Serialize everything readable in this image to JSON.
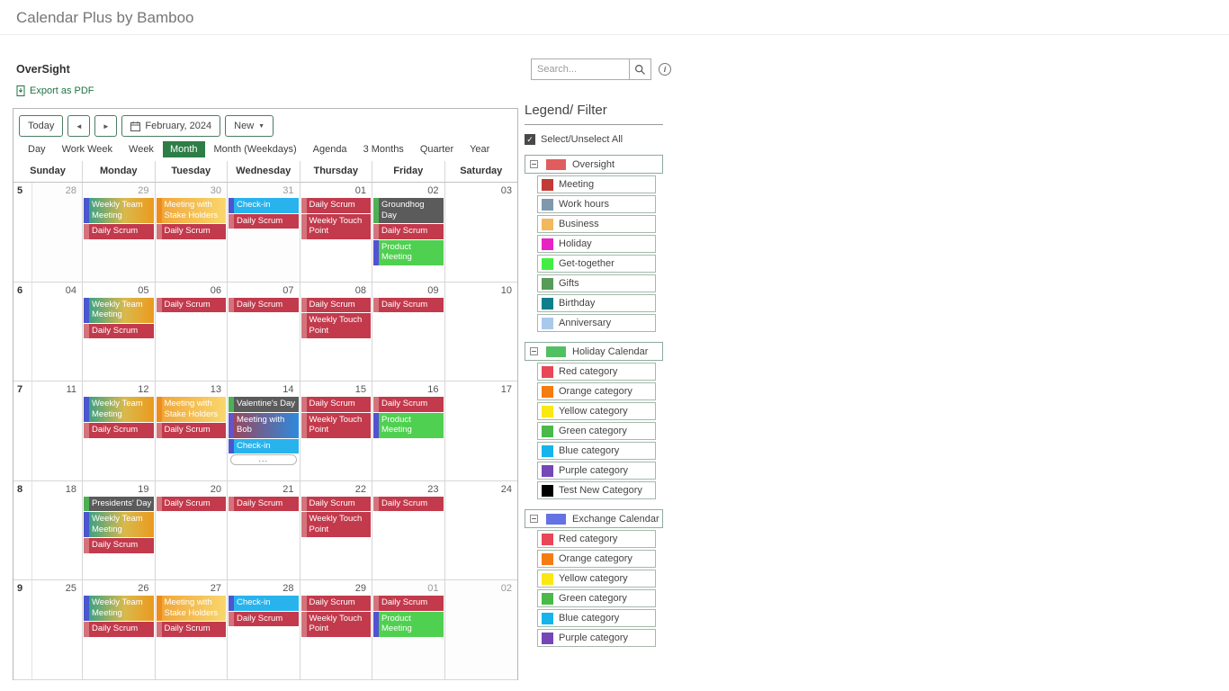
{
  "page": {
    "title": "Calendar Plus by Bamboo"
  },
  "webpart": {
    "title": "OverSight",
    "export_label": "Export as PDF"
  },
  "search": {
    "placeholder": "Search..."
  },
  "toolbar": {
    "today_label": "Today",
    "prev_icon": "◄",
    "next_icon": "►",
    "date_label": "February, 2024",
    "new_label": "New",
    "caret_icon": "▼"
  },
  "views": {
    "items": [
      "Day",
      "Work Week",
      "Week",
      "Month",
      "Month (Weekdays)",
      "Agenda",
      "3 Months",
      "Quarter",
      "Year"
    ],
    "selected": "Month"
  },
  "event_styles": {
    "scrum": {
      "stripe": "#d4737b",
      "body": "#c23a4c"
    },
    "team": {
      "stripe": "#4a57cf",
      "body": "linear-gradient(90deg,#3da184,#d9b94b 55%,#eb9a1e)"
    },
    "stake": {
      "stripe": "#ee8d1c",
      "body": "linear-gradient(90deg,#f0a73a,#f8d76d)"
    },
    "checkin": {
      "stripe": "#4a57cf",
      "body": "#29b3ed"
    },
    "holiday": {
      "stripe": "#4db153",
      "body": "#5b5b5b"
    },
    "product": {
      "stripe": "#5351d4",
      "body": "#50d050"
    },
    "bob": {
      "stripe": "#6055cc",
      "body": "linear-gradient(90deg,#97485f,#2e89dd)"
    }
  },
  "calendar": {
    "day_headers": [
      "Sunday",
      "Monday",
      "Tuesday",
      "Wednesday",
      "Thursday",
      "Friday",
      "Saturday"
    ],
    "more_label": "...",
    "weeks": [
      {
        "num": "5",
        "days": [
          {
            "date": "28",
            "out": true,
            "events": []
          },
          {
            "date": "29",
            "out": true,
            "events": [
              {
                "title": "Weekly Team Meeting",
                "style": "team"
              },
              {
                "title": "Daily Scrum",
                "style": "scrum"
              }
            ]
          },
          {
            "date": "30",
            "out": true,
            "events": [
              {
                "title": "Meeting with Stake Holders",
                "style": "stake"
              },
              {
                "title": "Daily Scrum",
                "style": "scrum"
              }
            ]
          },
          {
            "date": "31",
            "out": true,
            "events": [
              {
                "title": "Check-in",
                "style": "checkin"
              },
              {
                "title": "Daily Scrum",
                "style": "scrum"
              }
            ]
          },
          {
            "date": "01",
            "out": false,
            "events": [
              {
                "title": "Daily Scrum",
                "style": "scrum"
              },
              {
                "title": "Weekly Touch Point",
                "style": "scrum"
              }
            ]
          },
          {
            "date": "02",
            "out": false,
            "events": [
              {
                "title": "Groundhog Day",
                "style": "holiday"
              },
              {
                "title": "Daily Scrum",
                "style": "scrum"
              },
              {
                "title": "Product Meeting",
                "style": "product"
              }
            ]
          },
          {
            "date": "03",
            "out": false,
            "events": []
          }
        ]
      },
      {
        "num": "6",
        "days": [
          {
            "date": "04",
            "out": false,
            "events": []
          },
          {
            "date": "05",
            "out": false,
            "events": [
              {
                "title": "Weekly Team Meeting",
                "style": "team"
              },
              {
                "title": "Daily Scrum",
                "style": "scrum"
              }
            ]
          },
          {
            "date": "06",
            "out": false,
            "events": [
              {
                "title": "Daily Scrum",
                "style": "scrum"
              }
            ]
          },
          {
            "date": "07",
            "out": false,
            "events": [
              {
                "title": "Daily Scrum",
                "style": "scrum"
              }
            ]
          },
          {
            "date": "08",
            "out": false,
            "events": [
              {
                "title": "Daily Scrum",
                "style": "scrum"
              },
              {
                "title": "Weekly Touch Point",
                "style": "scrum"
              }
            ]
          },
          {
            "date": "09",
            "out": false,
            "events": [
              {
                "title": "Daily Scrum",
                "style": "scrum"
              }
            ]
          },
          {
            "date": "10",
            "out": false,
            "events": []
          }
        ]
      },
      {
        "num": "7",
        "days": [
          {
            "date": "11",
            "out": false,
            "events": []
          },
          {
            "date": "12",
            "out": false,
            "events": [
              {
                "title": "Weekly Team Meeting",
                "style": "team"
              },
              {
                "title": "Daily Scrum",
                "style": "scrum"
              }
            ]
          },
          {
            "date": "13",
            "out": false,
            "events": [
              {
                "title": "Meeting with Stake Holders",
                "style": "stake"
              },
              {
                "title": "Daily Scrum",
                "style": "scrum"
              }
            ]
          },
          {
            "date": "14",
            "out": false,
            "events": [
              {
                "title": "Valentine's Day",
                "style": "holiday"
              },
              {
                "title": "Meeting with Bob",
                "style": "bob"
              },
              {
                "title": "Check-in",
                "style": "checkin"
              },
              {
                "more": true
              }
            ]
          },
          {
            "date": "15",
            "out": false,
            "events": [
              {
                "title": "Daily Scrum",
                "style": "scrum"
              },
              {
                "title": "Weekly Touch Point",
                "style": "scrum"
              }
            ]
          },
          {
            "date": "16",
            "out": false,
            "events": [
              {
                "title": "Daily Scrum",
                "style": "scrum"
              },
              {
                "title": "Product Meeting",
                "style": "product"
              }
            ]
          },
          {
            "date": "17",
            "out": false,
            "events": []
          }
        ]
      },
      {
        "num": "8",
        "days": [
          {
            "date": "18",
            "out": false,
            "events": []
          },
          {
            "date": "19",
            "out": false,
            "events": [
              {
                "title": "Presidents' Day",
                "style": "holiday"
              },
              {
                "title": "Weekly Team Meeting",
                "style": "team"
              },
              {
                "title": "Daily Scrum",
                "style": "scrum"
              }
            ]
          },
          {
            "date": "20",
            "out": false,
            "events": [
              {
                "title": "Daily Scrum",
                "style": "scrum"
              }
            ]
          },
          {
            "date": "21",
            "out": false,
            "events": [
              {
                "title": "Daily Scrum",
                "style": "scrum"
              }
            ]
          },
          {
            "date": "22",
            "out": false,
            "events": [
              {
                "title": "Daily Scrum",
                "style": "scrum"
              },
              {
                "title": "Weekly Touch Point",
                "style": "scrum"
              }
            ]
          },
          {
            "date": "23",
            "out": false,
            "events": [
              {
                "title": "Daily Scrum",
                "style": "scrum"
              }
            ]
          },
          {
            "date": "24",
            "out": false,
            "events": []
          }
        ]
      },
      {
        "num": "9",
        "days": [
          {
            "date": "25",
            "out": false,
            "events": []
          },
          {
            "date": "26",
            "out": false,
            "events": [
              {
                "title": "Weekly Team Meeting",
                "style": "team"
              },
              {
                "title": "Daily Scrum",
                "style": "scrum"
              }
            ]
          },
          {
            "date": "27",
            "out": false,
            "events": [
              {
                "title": "Meeting with Stake Holders",
                "style": "stake"
              },
              {
                "title": "Daily Scrum",
                "style": "scrum"
              }
            ]
          },
          {
            "date": "28",
            "out": false,
            "events": [
              {
                "title": "Check-in",
                "style": "checkin"
              },
              {
                "title": "Daily Scrum",
                "style": "scrum"
              }
            ]
          },
          {
            "date": "29",
            "out": false,
            "events": [
              {
                "title": "Daily Scrum",
                "style": "scrum"
              },
              {
                "title": "Weekly Touch Point",
                "style": "scrum"
              }
            ]
          },
          {
            "date": "01",
            "out": true,
            "events": [
              {
                "title": "Daily Scrum",
                "style": "scrum"
              },
              {
                "title": "Product Meeting",
                "style": "product"
              }
            ]
          },
          {
            "date": "02",
            "out": true,
            "events": []
          }
        ]
      }
    ]
  },
  "legend": {
    "title": "Legend/ Filter",
    "select_all_label": "Select/Unselect All",
    "groups": [
      {
        "label": "Oversight",
        "color": "#e15d5d",
        "items": [
          {
            "label": "Meeting",
            "color": "#c23b35"
          },
          {
            "label": "Work hours",
            "color": "#7f98ae"
          },
          {
            "label": "Business",
            "color": "#f2b85e"
          },
          {
            "label": "Holiday",
            "color": "#e823c5"
          },
          {
            "label": "Get-together",
            "color": "#43ee43"
          },
          {
            "label": "Gifts",
            "color": "#579b58"
          },
          {
            "label": "Birthday",
            "color": "#0e7e8c"
          },
          {
            "label": "Anniversary",
            "color": "#a9c9ec"
          }
        ]
      },
      {
        "label": "Holiday Calendar",
        "color": "#52bf63",
        "items": [
          {
            "label": "Red category",
            "color": "#e84757"
          },
          {
            "label": "Orange category",
            "color": "#f57c12"
          },
          {
            "label": "Yellow category",
            "color": "#fbe813"
          },
          {
            "label": "Green category",
            "color": "#49ba49"
          },
          {
            "label": "Blue category",
            "color": "#16b4ea"
          },
          {
            "label": "Purple category",
            "color": "#7546b6"
          },
          {
            "label": "Test New Category",
            "color": "#000000"
          }
        ]
      },
      {
        "label": "Exchange Calendar",
        "color": "#6472e3",
        "items": [
          {
            "label": "Red category",
            "color": "#e84757"
          },
          {
            "label": "Orange category",
            "color": "#f57c12"
          },
          {
            "label": "Yellow category",
            "color": "#fbe813"
          },
          {
            "label": "Green category",
            "color": "#49ba49"
          },
          {
            "label": "Blue category",
            "color": "#16b4ea"
          },
          {
            "label": "Purple category",
            "color": "#7546b6"
          }
        ]
      }
    ]
  }
}
